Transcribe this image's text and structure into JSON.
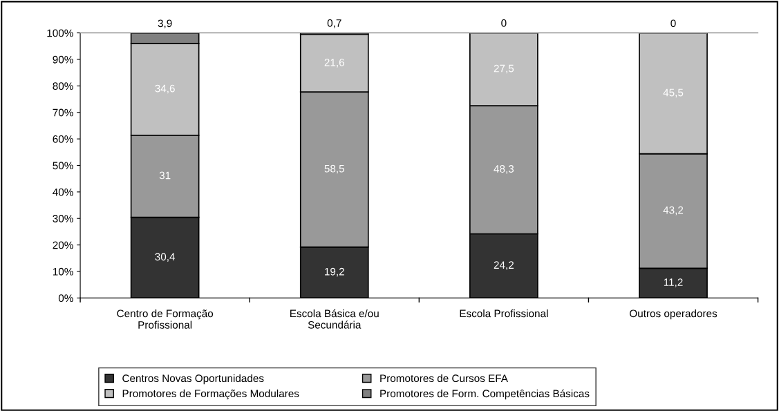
{
  "chart_data": {
    "type": "bar",
    "stacked": true,
    "categories": [
      "Centro de Formação\nProfissional",
      "Escola Básica e/ou\nSecundária",
      "Escola Profissional",
      "Outros operadores"
    ],
    "series": [
      {
        "name": "Centros Novas Oportunidades",
        "color": "#333333",
        "values": [
          30.4,
          19.2,
          24.2,
          11.2
        ],
        "value_labels": [
          "30,4",
          "19,2",
          "24,2",
          "11,2"
        ]
      },
      {
        "name": "Promotores de Cursos EFA",
        "color": "#999999",
        "values": [
          31,
          58.5,
          48.3,
          43.2
        ],
        "value_labels": [
          "31",
          "58,5",
          "48,3",
          "43,2"
        ]
      },
      {
        "name": "Promotores de Formações Modulares",
        "color": "#c0c0c0",
        "values": [
          34.6,
          21.6,
          27.5,
          45.5
        ],
        "value_labels": [
          "34,6",
          "21,6",
          "27,5",
          "45,5"
        ]
      },
      {
        "name": "Promotores de Form. Competências Básicas",
        "color": "#808080",
        "values": [
          3.9,
          0.7,
          0,
          0
        ],
        "value_labels": [
          "3,9",
          "0,7",
          "0",
          "0"
        ]
      }
    ],
    "ylim": [
      0,
      100
    ],
    "yticks": [
      {
        "value": 0,
        "label": "0%"
      },
      {
        "value": 10,
        "label": "10%"
      },
      {
        "value": 20,
        "label": "20%"
      },
      {
        "value": 30,
        "label": "30%"
      },
      {
        "value": 40,
        "label": "40%"
      },
      {
        "value": 50,
        "label": "50%"
      },
      {
        "value": 60,
        "label": "60%"
      },
      {
        "value": 70,
        "label": "70%"
      },
      {
        "value": 80,
        "label": "80%"
      },
      {
        "value": 90,
        "label": "90%"
      },
      {
        "value": 100,
        "label": "100%"
      }
    ],
    "legend": "bottom"
  }
}
